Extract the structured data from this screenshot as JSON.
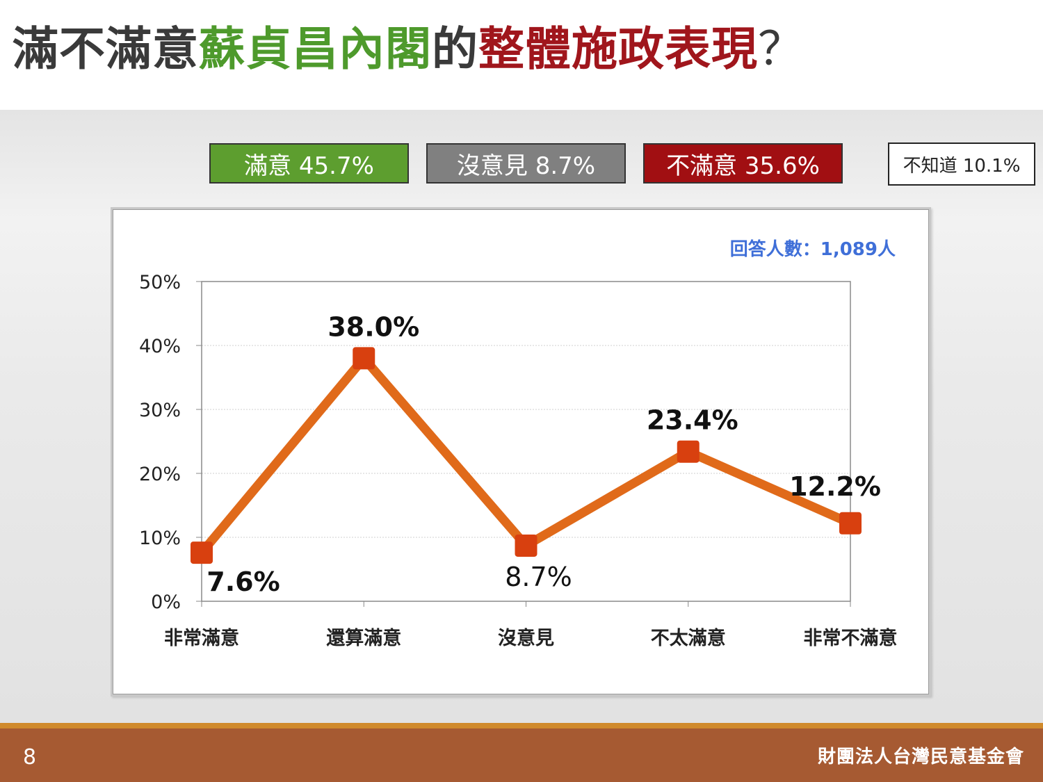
{
  "title": {
    "part1": "滿不滿意",
    "part2": "蘇貞昌內閣",
    "part3": "的",
    "part4": "整體施政表現",
    "part5": "？"
  },
  "summary": {
    "satisfied": "滿意 45.7%",
    "no_opinion": "沒意見 8.7%",
    "unsatisfied": "不滿意 35.6%",
    "unknown": "不知道 10.1%"
  },
  "colors": {
    "satisfied": "#5d9e2f",
    "no_opinion": "#808080",
    "unsatisfied": "#a10f12",
    "line": "#e06a1a",
    "marker": "#d8400f",
    "note": "#3f6fd8"
  },
  "chart_data": {
    "type": "line",
    "categories": [
      "非常滿意",
      "還算滿意",
      "沒意見",
      "不太滿意",
      "非常不滿意"
    ],
    "values": [
      7.6,
      38.0,
      8.7,
      23.4,
      12.2
    ],
    "data_labels": [
      "7.6%",
      "38.0%",
      "8.7%",
      "23.4%",
      "12.2%"
    ],
    "ylim": [
      0,
      50
    ],
    "y_ticks": [
      "0%",
      "10%",
      "20%",
      "30%",
      "40%",
      "50%"
    ],
    "note": "回答人數：1,089人",
    "grid": true
  },
  "footer": {
    "page": "8",
    "org": "財團法人台灣民意基金會"
  }
}
